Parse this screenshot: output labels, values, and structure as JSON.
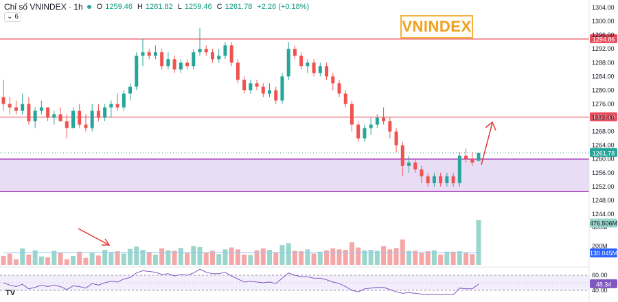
{
  "header": {
    "symbol_title": "Chỉ số VNINDEX · 1h",
    "o_label": "O",
    "o_value": "1259.46",
    "h_label": "H",
    "h_value": "1261.82",
    "l_label": "L",
    "l_value": "1259.46",
    "c_label": "C",
    "c_value": "1261.78",
    "change": "+2.26 (+0.18%)",
    "indicator_count": "6"
  },
  "watermark": "VNINDEX",
  "logo": "TV",
  "colors": {
    "up": "#26a69a",
    "down": "#ef5350",
    "up_vol": "#9ad6cc",
    "down_vol": "#f5a7a7",
    "resistance": "#e84b5b",
    "zone": "#9c27b0",
    "zone_fill": "#e9ddf5",
    "rsi_line": "#7e57c2",
    "rsi_band": "#f3eefb",
    "arrow": "#e53935"
  },
  "chart_data": {
    "type": "candlestick",
    "title": "Chỉ số VNINDEX · 1h",
    "ylim": [
      1244,
      1305
    ],
    "price_ticks": [
      "1304.00",
      "1300.00",
      "1296.00",
      "1292.00",
      "1288.00",
      "1284.00",
      "1280.00",
      "1276.00",
      "1272.00",
      "1268.00",
      "1264.00",
      "1260.00",
      "1256.00",
      "1252.00",
      "1248.00",
      "1244.00"
    ],
    "price_tick_values": [
      1304,
      1300,
      1296,
      1292,
      1288,
      1284,
      1280,
      1276,
      1272,
      1268,
      1264,
      1260,
      1256,
      1252,
      1248,
      1244
    ],
    "last_price": 1261.78,
    "last_price_label": "1261.78",
    "levels": [
      {
        "name": "resistance-upper",
        "value": 1294.86,
        "label": "1294.86"
      },
      {
        "name": "resistance-lower",
        "value": 1272.19,
        "label": "1272.19"
      }
    ],
    "zone": {
      "top": 1260.0,
      "bottom": 1250.6
    },
    "candles": [
      [
        1278,
        1283,
        1274,
        1276
      ],
      [
        1276,
        1278,
        1273,
        1275
      ],
      [
        1275,
        1277,
        1273,
        1274
      ],
      [
        1274,
        1279,
        1273,
        1276
      ],
      [
        1276,
        1278,
        1270,
        1271
      ],
      [
        1271,
        1275,
        1269,
        1274
      ],
      [
        1274,
        1277,
        1273,
        1275
      ],
      [
        1275,
        1275,
        1271,
        1272
      ],
      [
        1272,
        1274,
        1270,
        1273
      ],
      [
        1273,
        1275,
        1271,
        1271
      ],
      [
        1271,
        1273,
        1266,
        1269
      ],
      [
        1269,
        1275,
        1269,
        1274
      ],
      [
        1274,
        1276,
        1269,
        1270
      ],
      [
        1270,
        1273,
        1268,
        1269
      ],
      [
        1269,
        1276,
        1268,
        1274
      ],
      [
        1274,
        1276,
        1271,
        1272
      ],
      [
        1272,
        1276,
        1271,
        1275
      ],
      [
        1275,
        1277,
        1272,
        1276
      ],
      [
        1276,
        1279,
        1274,
        1275
      ],
      [
        1275,
        1280,
        1274,
        1279
      ],
      [
        1279,
        1282,
        1277,
        1281
      ],
      [
        1281,
        1291,
        1280,
        1290
      ],
      [
        1290,
        1295,
        1287,
        1291
      ],
      [
        1291,
        1292,
        1289,
        1290
      ],
      [
        1290,
        1293,
        1289,
        1291
      ],
      [
        1291,
        1292,
        1286,
        1287
      ],
      [
        1287,
        1291,
        1286,
        1289
      ],
      [
        1289,
        1290,
        1285,
        1286
      ],
      [
        1286,
        1289,
        1285,
        1288
      ],
      [
        1288,
        1289,
        1286,
        1287
      ],
      [
        1287,
        1292,
        1286,
        1291
      ],
      [
        1291,
        1298,
        1290,
        1292
      ],
      [
        1292,
        1293,
        1290,
        1291
      ],
      [
        1291,
        1292,
        1288,
        1289
      ],
      [
        1289,
        1292,
        1288,
        1290
      ],
      [
        1290,
        1294,
        1289,
        1293
      ],
      [
        1293,
        1294,
        1287,
        1288
      ],
      [
        1288,
        1289,
        1282,
        1283
      ],
      [
        1283,
        1284,
        1279,
        1280
      ],
      [
        1280,
        1283,
        1279,
        1282
      ],
      [
        1282,
        1283,
        1280,
        1281
      ],
      [
        1281,
        1282,
        1278,
        1279
      ],
      [
        1279,
        1282,
        1278,
        1280
      ],
      [
        1280,
        1281,
        1276,
        1277
      ],
      [
        1277,
        1285,
        1276,
        1284
      ],
      [
        1284,
        1294,
        1283,
        1292
      ],
      [
        1292,
        1293,
        1289,
        1290
      ],
      [
        1290,
        1291,
        1286,
        1287
      ],
      [
        1287,
        1289,
        1285,
        1288
      ],
      [
        1288,
        1289,
        1284,
        1285
      ],
      [
        1285,
        1288,
        1284,
        1287
      ],
      [
        1287,
        1288,
        1283,
        1284
      ],
      [
        1284,
        1285,
        1280,
        1282
      ],
      [
        1282,
        1283,
        1278,
        1279
      ],
      [
        1279,
        1280,
        1275,
        1276
      ],
      [
        1276,
        1277,
        1268,
        1270
      ],
      [
        1270,
        1271,
        1265,
        1266
      ],
      [
        1266,
        1270,
        1265,
        1269
      ],
      [
        1269,
        1272,
        1267,
        1270
      ],
      [
        1270,
        1273,
        1269,
        1272
      ],
      [
        1272,
        1275,
        1270,
        1271
      ],
      [
        1271,
        1272,
        1266,
        1268
      ],
      [
        1268,
        1269,
        1262,
        1264
      ],
      [
        1264,
        1265,
        1255,
        1258
      ],
      [
        1258,
        1261,
        1256,
        1259
      ],
      [
        1259,
        1260,
        1256,
        1257
      ],
      [
        1257,
        1258,
        1253,
        1255
      ],
      [
        1255,
        1256,
        1252,
        1253
      ],
      [
        1253,
        1256,
        1252,
        1255
      ],
      [
        1255,
        1256,
        1252,
        1253
      ],
      [
        1253,
        1256,
        1252,
        1255
      ],
      [
        1255,
        1256,
        1252,
        1253
      ],
      [
        1253,
        1262,
        1252,
        1261
      ],
      [
        1261,
        1263,
        1259,
        1260
      ],
      [
        1260,
        1262,
        1258,
        1259
      ],
      [
        1259.46,
        1261.82,
        1259.46,
        1261.78
      ]
    ],
    "volume_ticks": [
      "400M",
      "200M"
    ],
    "volume_tick_values": [
      400,
      200
    ],
    "volume_ylim": [
      0,
      600
    ],
    "volume_last_label": "476.506M",
    "volume_ma_label": "130.045M",
    "volumes": [
      95,
      120,
      60,
      175,
      110,
      155,
      90,
      80,
      150,
      130,
      60,
      95,
      140,
      75,
      125,
      100,
      160,
      130,
      145,
      120,
      170,
      195,
      160,
      135,
      110,
      175,
      155,
      150,
      180,
      125,
      200,
      190,
      130,
      150,
      115,
      165,
      185,
      165,
      110,
      105,
      155,
      175,
      160,
      135,
      210,
      230,
      150,
      145,
      165,
      120,
      140,
      155,
      175,
      165,
      160,
      240,
      185,
      155,
      160,
      150,
      200,
      165,
      180,
      270,
      150,
      150,
      130,
      145,
      155,
      110,
      140,
      140,
      145,
      130,
      115,
      476.506
    ],
    "volume_ma": [
      130,
      130,
      130,
      130,
      130,
      130,
      130,
      130,
      130,
      130,
      131,
      131,
      131,
      132,
      132,
      132,
      132,
      133,
      133,
      133,
      134,
      134,
      134,
      134,
      133,
      133,
      133,
      133,
      133,
      133,
      133,
      132,
      132,
      132,
      132,
      132,
      132,
      131,
      131,
      131,
      131,
      131,
      131,
      131,
      131,
      131,
      131,
      130,
      130,
      130,
      130,
      130,
      130,
      130,
      130,
      130,
      130,
      130,
      130,
      130,
      130,
      130,
      130,
      130,
      130,
      130,
      130,
      130,
      130,
      130,
      130,
      130,
      130,
      130,
      130,
      130.045
    ],
    "rsi_ticks": [
      "60.00",
      "40.00"
    ],
    "rsi_tick_values": [
      60,
      40
    ],
    "rsi_ylim": [
      30,
      75
    ],
    "rsi_last_label": "48.34",
    "rsi": [
      50,
      47,
      45,
      48,
      42,
      44,
      47,
      45,
      47,
      45,
      41,
      46,
      45,
      43,
      49,
      47,
      50,
      52,
      51,
      55,
      57,
      63,
      66,
      65,
      64,
      61,
      62,
      59,
      61,
      60,
      63,
      68,
      64,
      62,
      62,
      64,
      59,
      55,
      51,
      52,
      51,
      50,
      51,
      49,
      56,
      63,
      60,
      58,
      58,
      56,
      56,
      54,
      51,
      49,
      45,
      40,
      38,
      42,
      43,
      44,
      44,
      41,
      38,
      36,
      37,
      36,
      35,
      34,
      35,
      34,
      35,
      34,
      43,
      42,
      42,
      48.34
    ]
  }
}
